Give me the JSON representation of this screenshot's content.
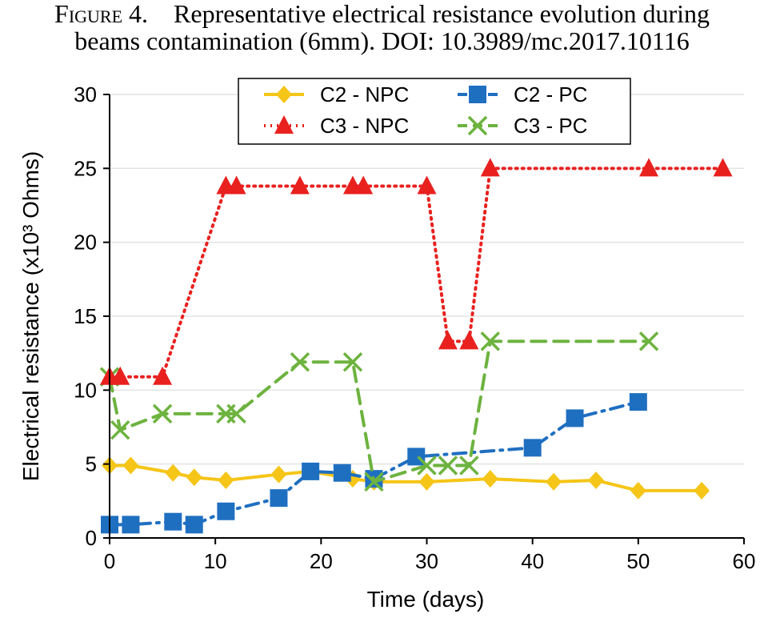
{
  "caption": {
    "label": "Figure 4.",
    "text_line1": "Representative electrical resistance evolution during",
    "text_line2": "beams contamination (6mm). DOI: 10.3989/mc.2017.10116"
  },
  "chart_data": {
    "type": "line",
    "xlabel": "Time (days)",
    "ylabel": "Electrical resistance (x10³ Ohms)",
    "xlim": [
      0,
      60
    ],
    "ylim": [
      0,
      30
    ],
    "xticks": [
      0,
      10,
      20,
      30,
      40,
      50,
      60
    ],
    "yticks": [
      0,
      5,
      10,
      15,
      20,
      25,
      30
    ],
    "grid": "horizontal",
    "legend_placement": "top-center",
    "series": [
      {
        "name": "C2 - NPC",
        "color": "#f5c518",
        "marker": "diamond",
        "line_style": "solid",
        "points": [
          [
            0,
            4.9
          ],
          [
            2,
            4.9
          ],
          [
            6,
            4.4
          ],
          [
            8,
            4.1
          ],
          [
            11,
            3.9
          ],
          [
            16,
            4.3
          ],
          [
            19,
            4.5
          ],
          [
            23,
            4.0
          ],
          [
            25,
            3.8
          ],
          [
            30,
            3.8
          ],
          [
            36,
            4.0
          ],
          [
            42,
            3.8
          ],
          [
            46,
            3.9
          ],
          [
            50,
            3.2
          ],
          [
            56,
            3.2
          ]
        ]
      },
      {
        "name": "C2 - PC",
        "color": "#1f6fc1",
        "marker": "square",
        "line_style": "dashdot",
        "points": [
          [
            0,
            0.9
          ],
          [
            2,
            0.9
          ],
          [
            6,
            1.1
          ],
          [
            8,
            0.9
          ],
          [
            11,
            1.8
          ],
          [
            16,
            2.7
          ],
          [
            19,
            4.5
          ],
          [
            22,
            4.4
          ],
          [
            25,
            4.0
          ],
          [
            29,
            5.5
          ],
          [
            40,
            6.1
          ],
          [
            44,
            8.1
          ],
          [
            50,
            9.2
          ]
        ]
      },
      {
        "name": "C3 - NPC",
        "color": "#e8211f",
        "marker": "triangle",
        "line_style": "dotted",
        "points": [
          [
            0,
            10.9
          ],
          [
            1,
            10.9
          ],
          [
            5,
            10.9
          ],
          [
            11,
            23.8
          ],
          [
            12,
            23.8
          ],
          [
            18,
            23.8
          ],
          [
            23,
            23.8
          ],
          [
            24,
            23.8
          ],
          [
            30,
            23.8
          ],
          [
            32,
            13.3
          ],
          [
            34,
            13.3
          ],
          [
            36,
            25.0
          ],
          [
            51,
            25.0
          ],
          [
            58,
            25.0
          ]
        ]
      },
      {
        "name": "C3 - PC",
        "color": "#6db33f",
        "marker": "x",
        "line_style": "dashed",
        "points": [
          [
            0,
            10.9
          ],
          [
            1,
            7.3
          ],
          [
            5,
            8.4
          ],
          [
            11,
            8.4
          ],
          [
            12,
            8.4
          ],
          [
            18,
            11.9
          ],
          [
            23,
            11.9
          ],
          [
            25,
            3.8
          ],
          [
            30,
            4.9
          ],
          [
            32,
            4.9
          ],
          [
            34,
            4.9
          ],
          [
            36,
            13.3
          ],
          [
            51,
            13.3
          ]
        ]
      }
    ]
  }
}
